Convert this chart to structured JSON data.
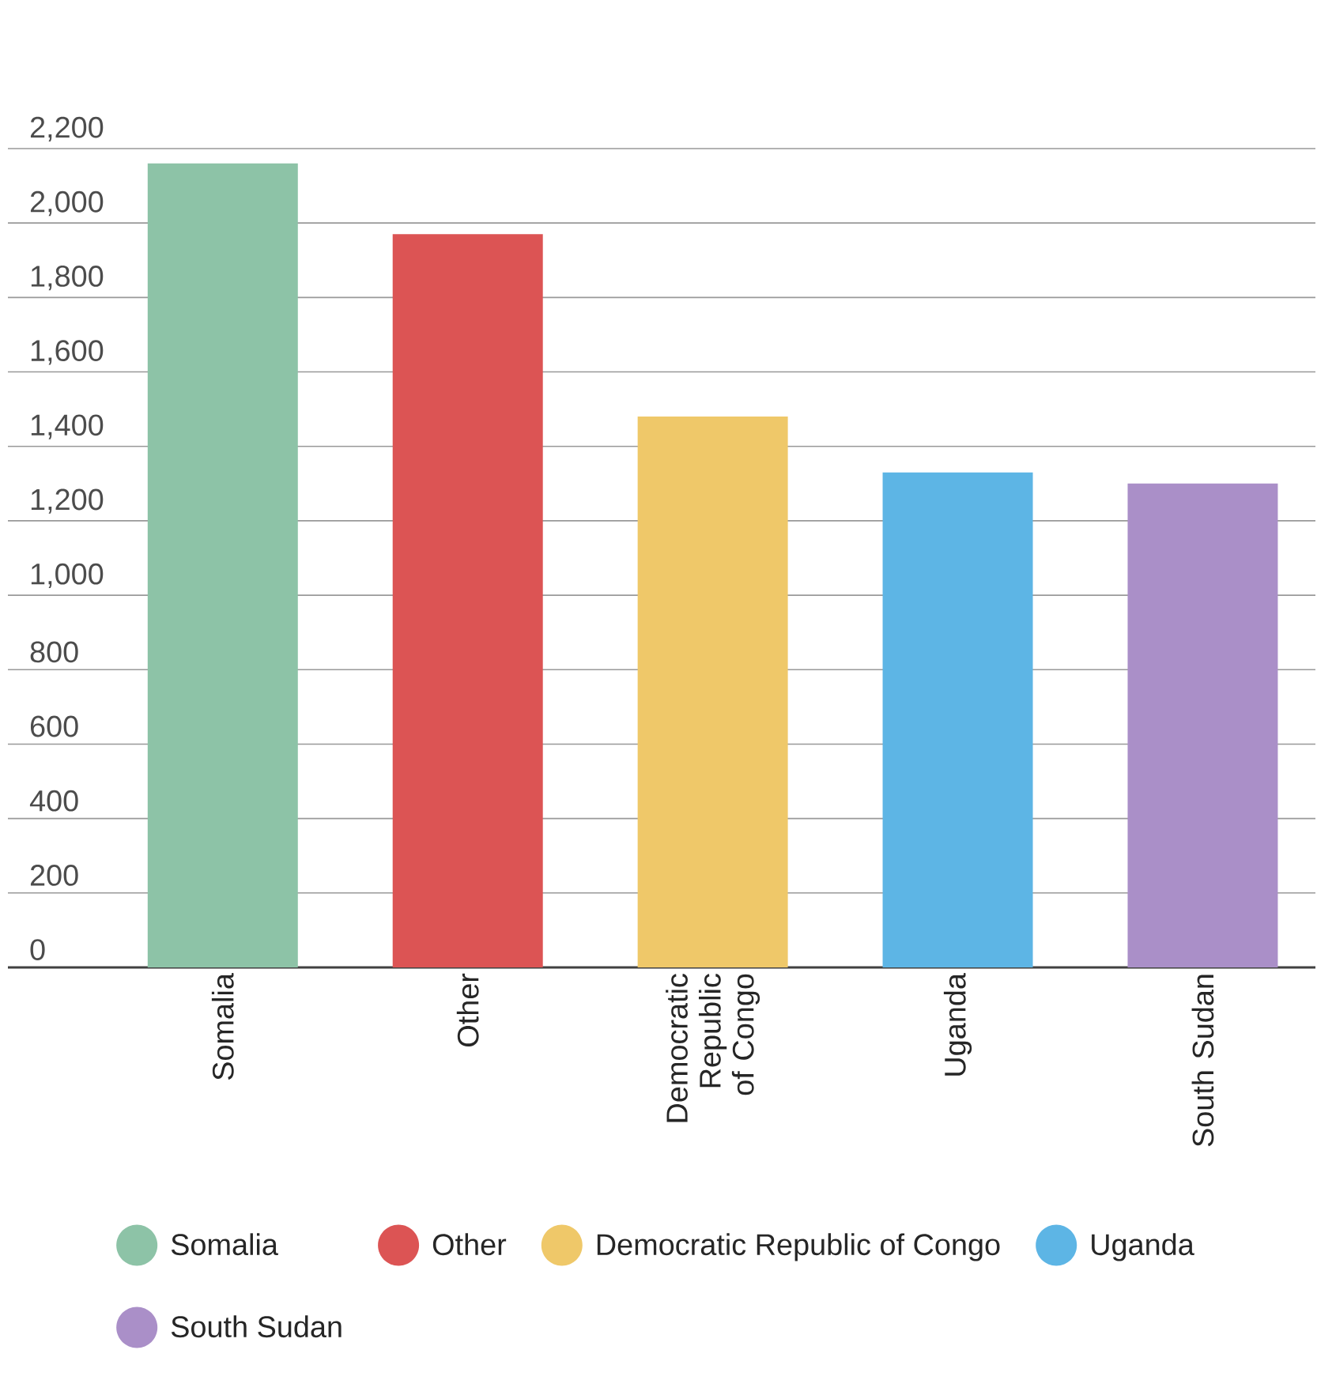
{
  "chart_data": {
    "type": "bar",
    "categories": [
      "Somalia",
      "Other",
      "Democratic Republic of Congo",
      "Uganda",
      "South Sudan"
    ],
    "series": [
      {
        "name": "Somalia",
        "color": "#8dc3a7",
        "values": [
          2160,
          null,
          null,
          null,
          null
        ]
      },
      {
        "name": "Other",
        "color": "#dc5454",
        "values": [
          null,
          1970,
          null,
          null,
          null
        ]
      },
      {
        "name": "Democratic Republic of Congo",
        "color": "#efc869",
        "values": [
          null,
          null,
          1480,
          null,
          null
        ]
      },
      {
        "name": "Uganda",
        "color": "#5db5e5",
        "values": [
          null,
          null,
          null,
          1330,
          null
        ]
      },
      {
        "name": "South Sudan",
        "color": "#aa8fc8",
        "values": [
          null,
          null,
          null,
          null,
          1300
        ]
      }
    ],
    "ylim": [
      0,
      2200
    ],
    "yticks": [
      0,
      200,
      400,
      600,
      800,
      {
        "value": 1000,
        "label": "1,000"
      },
      {
        "value": 1200,
        "label": "1,200"
      },
      {
        "value": 1400,
        "label": "1,400"
      },
      {
        "value": 1600,
        "label": "1,600"
      },
      {
        "value": 1800,
        "label": "1,800"
      },
      {
        "value": 2000,
        "label": "2,000"
      },
      {
        "value": 2200,
        "label": "2,200"
      }
    ],
    "grid": "y",
    "legend": "bottom"
  }
}
